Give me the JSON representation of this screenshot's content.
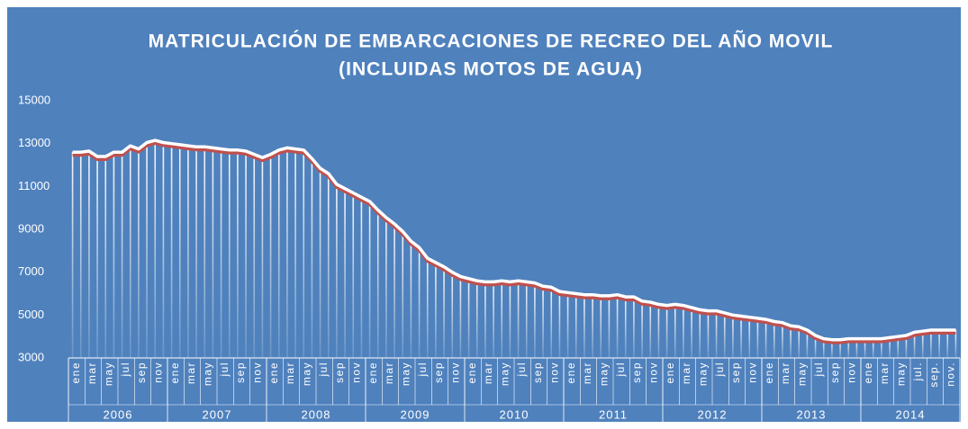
{
  "chart_data": {
    "type": "bar-line",
    "title": "MATRICULACIÓN  DE EMBARCACIONES  DE RECREO DEL AÑO MOVIL",
    "subtitle": "(INCLUIDAS  MOTOS DE AGUA)",
    "categories": [
      "ene",
      null,
      "mar",
      null,
      "may",
      null,
      "jul",
      null,
      "sep",
      null,
      "nov",
      null,
      "ene",
      null,
      "mar",
      null,
      "may",
      null,
      "jul",
      null,
      "sep",
      null,
      "nov",
      null,
      "ene",
      null,
      "mar",
      null,
      "may",
      null,
      "jul",
      null,
      "sep",
      null,
      "nov",
      null,
      "ene",
      null,
      "mar",
      null,
      "may",
      null,
      "jul",
      null,
      "sep",
      null,
      "nov",
      null,
      "ene",
      null,
      "mar",
      null,
      "may",
      null,
      "jul",
      null,
      "sep",
      null,
      "nov",
      null,
      "ene",
      null,
      "mar",
      null,
      "may",
      null,
      "jul",
      null,
      "sep",
      null,
      "nov",
      null,
      "ene",
      null,
      "mar",
      null,
      "may",
      null,
      "jul",
      null,
      "sep",
      null,
      "nov",
      null,
      "ene",
      null,
      "mar",
      null,
      "may",
      null,
      "jul",
      null,
      "sep",
      null,
      "nov",
      null,
      "ene",
      null,
      "mar",
      null,
      "may",
      null,
      "jul.",
      null,
      "sep.",
      null,
      "nov.",
      null
    ],
    "years": [
      "2006",
      "2007",
      "2008",
      "2009",
      "2010",
      "2011",
      "2012",
      "2013",
      "2014"
    ],
    "values": [
      12600,
      12600,
      12650,
      12400,
      12400,
      12600,
      12600,
      12900,
      12750,
      13050,
      13150,
      13050,
      13000,
      12950,
      12900,
      12850,
      12850,
      12800,
      12750,
      12700,
      12700,
      12650,
      12500,
      12350,
      12500,
      12700,
      12800,
      12750,
      12700,
      12300,
      11850,
      11600,
      11100,
      10900,
      10700,
      10500,
      10300,
      9900,
      9550,
      9250,
      8900,
      8450,
      8150,
      7650,
      7450,
      7250,
      7000,
      6800,
      6700,
      6600,
      6550,
      6550,
      6600,
      6550,
      6600,
      6550,
      6500,
      6350,
      6300,
      6100,
      6050,
      6000,
      5950,
      5950,
      5900,
      5900,
      5950,
      5850,
      5850,
      5650,
      5600,
      5500,
      5450,
      5500,
      5450,
      5350,
      5250,
      5200,
      5200,
      5100,
      5000,
      4950,
      4900,
      4850,
      4800,
      4700,
      4650,
      4500,
      4450,
      4300,
      4050,
      3900,
      3850,
      3850,
      3900,
      3900,
      3900,
      3900,
      3900,
      3950,
      4000,
      4050,
      4200,
      4250,
      4300,
      4300,
      4300,
      4300
    ],
    "bar_color": "#ffffff",
    "line_color": "#ffffff",
    "shadow_color": "#c0504d",
    "ylim": [
      3000,
      15000
    ],
    "yticks": [
      3000,
      5000,
      7000,
      9000,
      11000,
      13000,
      15000
    ]
  }
}
